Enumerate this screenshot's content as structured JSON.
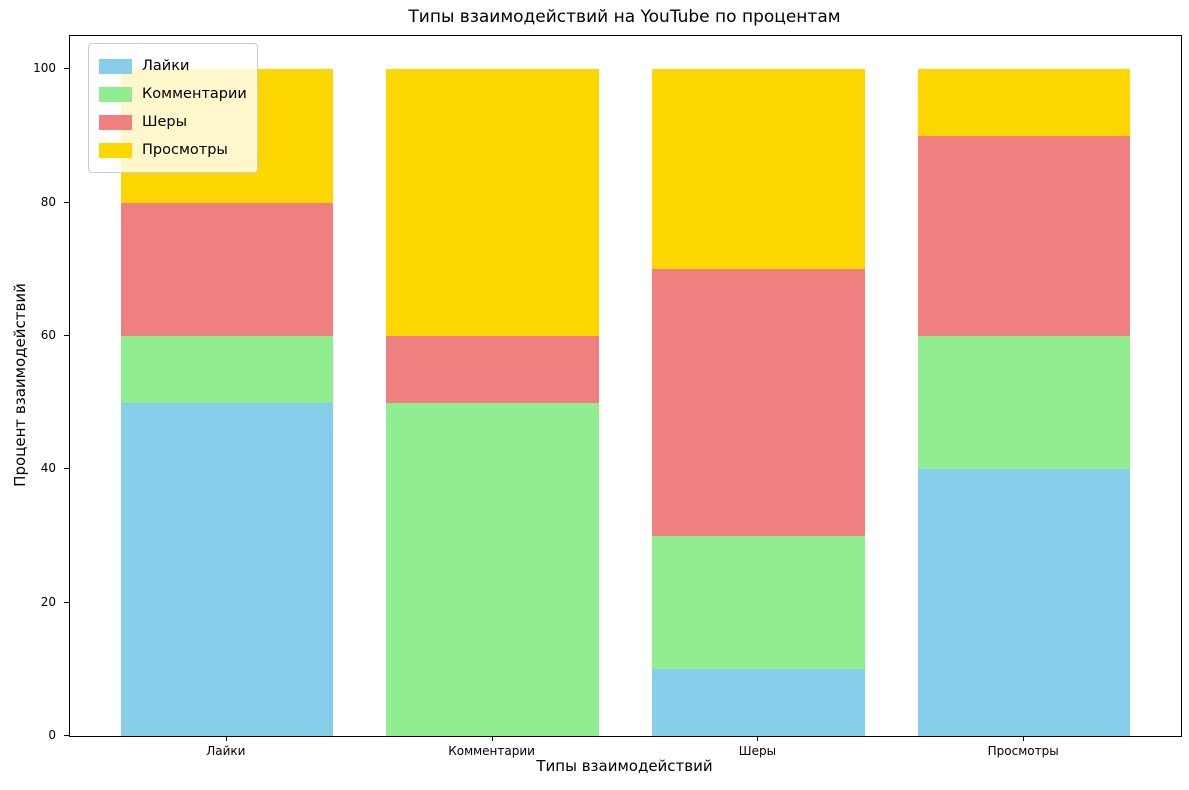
{
  "chart_data": {
    "type": "bar",
    "stacked": true,
    "title": "Типы взаимодействий на YouTube по процентам",
    "xlabel": "Типы взаимодействий",
    "ylabel": "Процент взаимодействий",
    "categories": [
      "Лайки",
      "Комментарии",
      "Шеры",
      "Просмотры"
    ],
    "series": [
      {
        "name": "Лайки",
        "color": "#87CEEB",
        "values": [
          50,
          0,
          10,
          40
        ]
      },
      {
        "name": "Комментарии",
        "color": "#90EE90",
        "values": [
          10,
          50,
          20,
          20
        ]
      },
      {
        "name": "Шеры",
        "color": "#F08080",
        "values": [
          20,
          10,
          40,
          30
        ]
      },
      {
        "name": "Просмотры",
        "color": "#FFD700",
        "values": [
          20,
          40,
          30,
          10
        ]
      }
    ],
    "yticks": [
      0,
      20,
      40,
      60,
      80,
      100
    ],
    "ylim": [
      0,
      105
    ],
    "bar_width_fraction": 0.8,
    "legend_position": "upper left",
    "grid": false,
    "background_color": "#ffffff",
    "spine_color": "#000000"
  }
}
